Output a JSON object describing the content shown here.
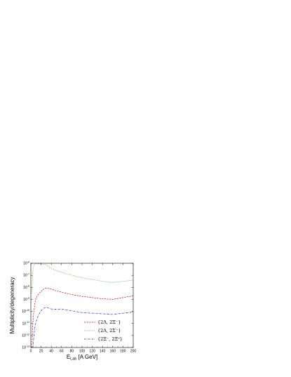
{
  "chart_data": {
    "type": "line",
    "xlabel_main": "E",
    "xlabel_sub": "Lab",
    "xlabel_rest": " [A GeV]",
    "ylabel": "Multiplicity/degeneracy",
    "x_range": [
      0,
      200
    ],
    "y_log": true,
    "y_range_exp": [
      -13,
      -6
    ],
    "x_ticks": [
      "0",
      "20",
      "40",
      "60",
      "80",
      "100",
      "120",
      "140",
      "160",
      "180",
      "200"
    ],
    "y_tick_exps": [
      -13,
      -12,
      -11,
      -10,
      -9,
      -8,
      -7,
      -6
    ],
    "legend_position": "bottom-right",
    "series": [
      {
        "name": "{2Λ, 2Ξ⁻}",
        "color": "#e00000",
        "dash": "2.2,1.4",
        "x": [
          2,
          4,
          6,
          8,
          10,
          15,
          20,
          25,
          30,
          40,
          50,
          60,
          80,
          100,
          120,
          140,
          160,
          180,
          200
        ],
        "log10_y": [
          -13.0,
          -10.9,
          -9.9,
          -9.3,
          -8.9,
          -8.55,
          -8.35,
          -8.15,
          -8.05,
          -8.15,
          -8.3,
          -8.4,
          -8.6,
          -8.75,
          -8.85,
          -8.95,
          -9.0,
          -8.85,
          -8.7
        ]
      },
      {
        "name": "{2Λ, 2Σ⁻}",
        "color": "#109010",
        "dash": "0.6,1.2",
        "x": [
          2,
          4,
          6,
          8,
          10,
          15,
          20,
          25,
          30,
          40,
          50,
          60,
          80,
          100,
          120,
          140,
          160,
          180,
          200
        ],
        "log10_y": [
          -8.5,
          -6.6,
          -6.1,
          -6.05,
          -6.05,
          -6.05,
          -6.05,
          -6.1,
          -6.1,
          -6.45,
          -6.6,
          -6.75,
          -7.0,
          -7.2,
          -7.35,
          -7.5,
          -7.6,
          -7.5,
          -7.4
        ]
      },
      {
        "name": "{2Ξ⁻, 2Ξ⁰}",
        "color": "#1010d0",
        "dash": "2.4,1.2,0.6,1.2",
        "x": [
          4,
          6,
          8,
          10,
          15,
          20,
          25,
          30,
          35,
          40,
          50,
          60,
          80,
          100,
          120,
          140,
          160,
          180,
          200
        ],
        "log10_y": [
          -13.0,
          -12.0,
          -11.3,
          -10.9,
          -10.3,
          -9.95,
          -9.75,
          -9.65,
          -9.72,
          -9.8,
          -9.82,
          -9.8,
          -9.95,
          -10.1,
          -10.15,
          -10.2,
          -10.25,
          -10.15,
          -10.05
        ]
      }
    ]
  }
}
